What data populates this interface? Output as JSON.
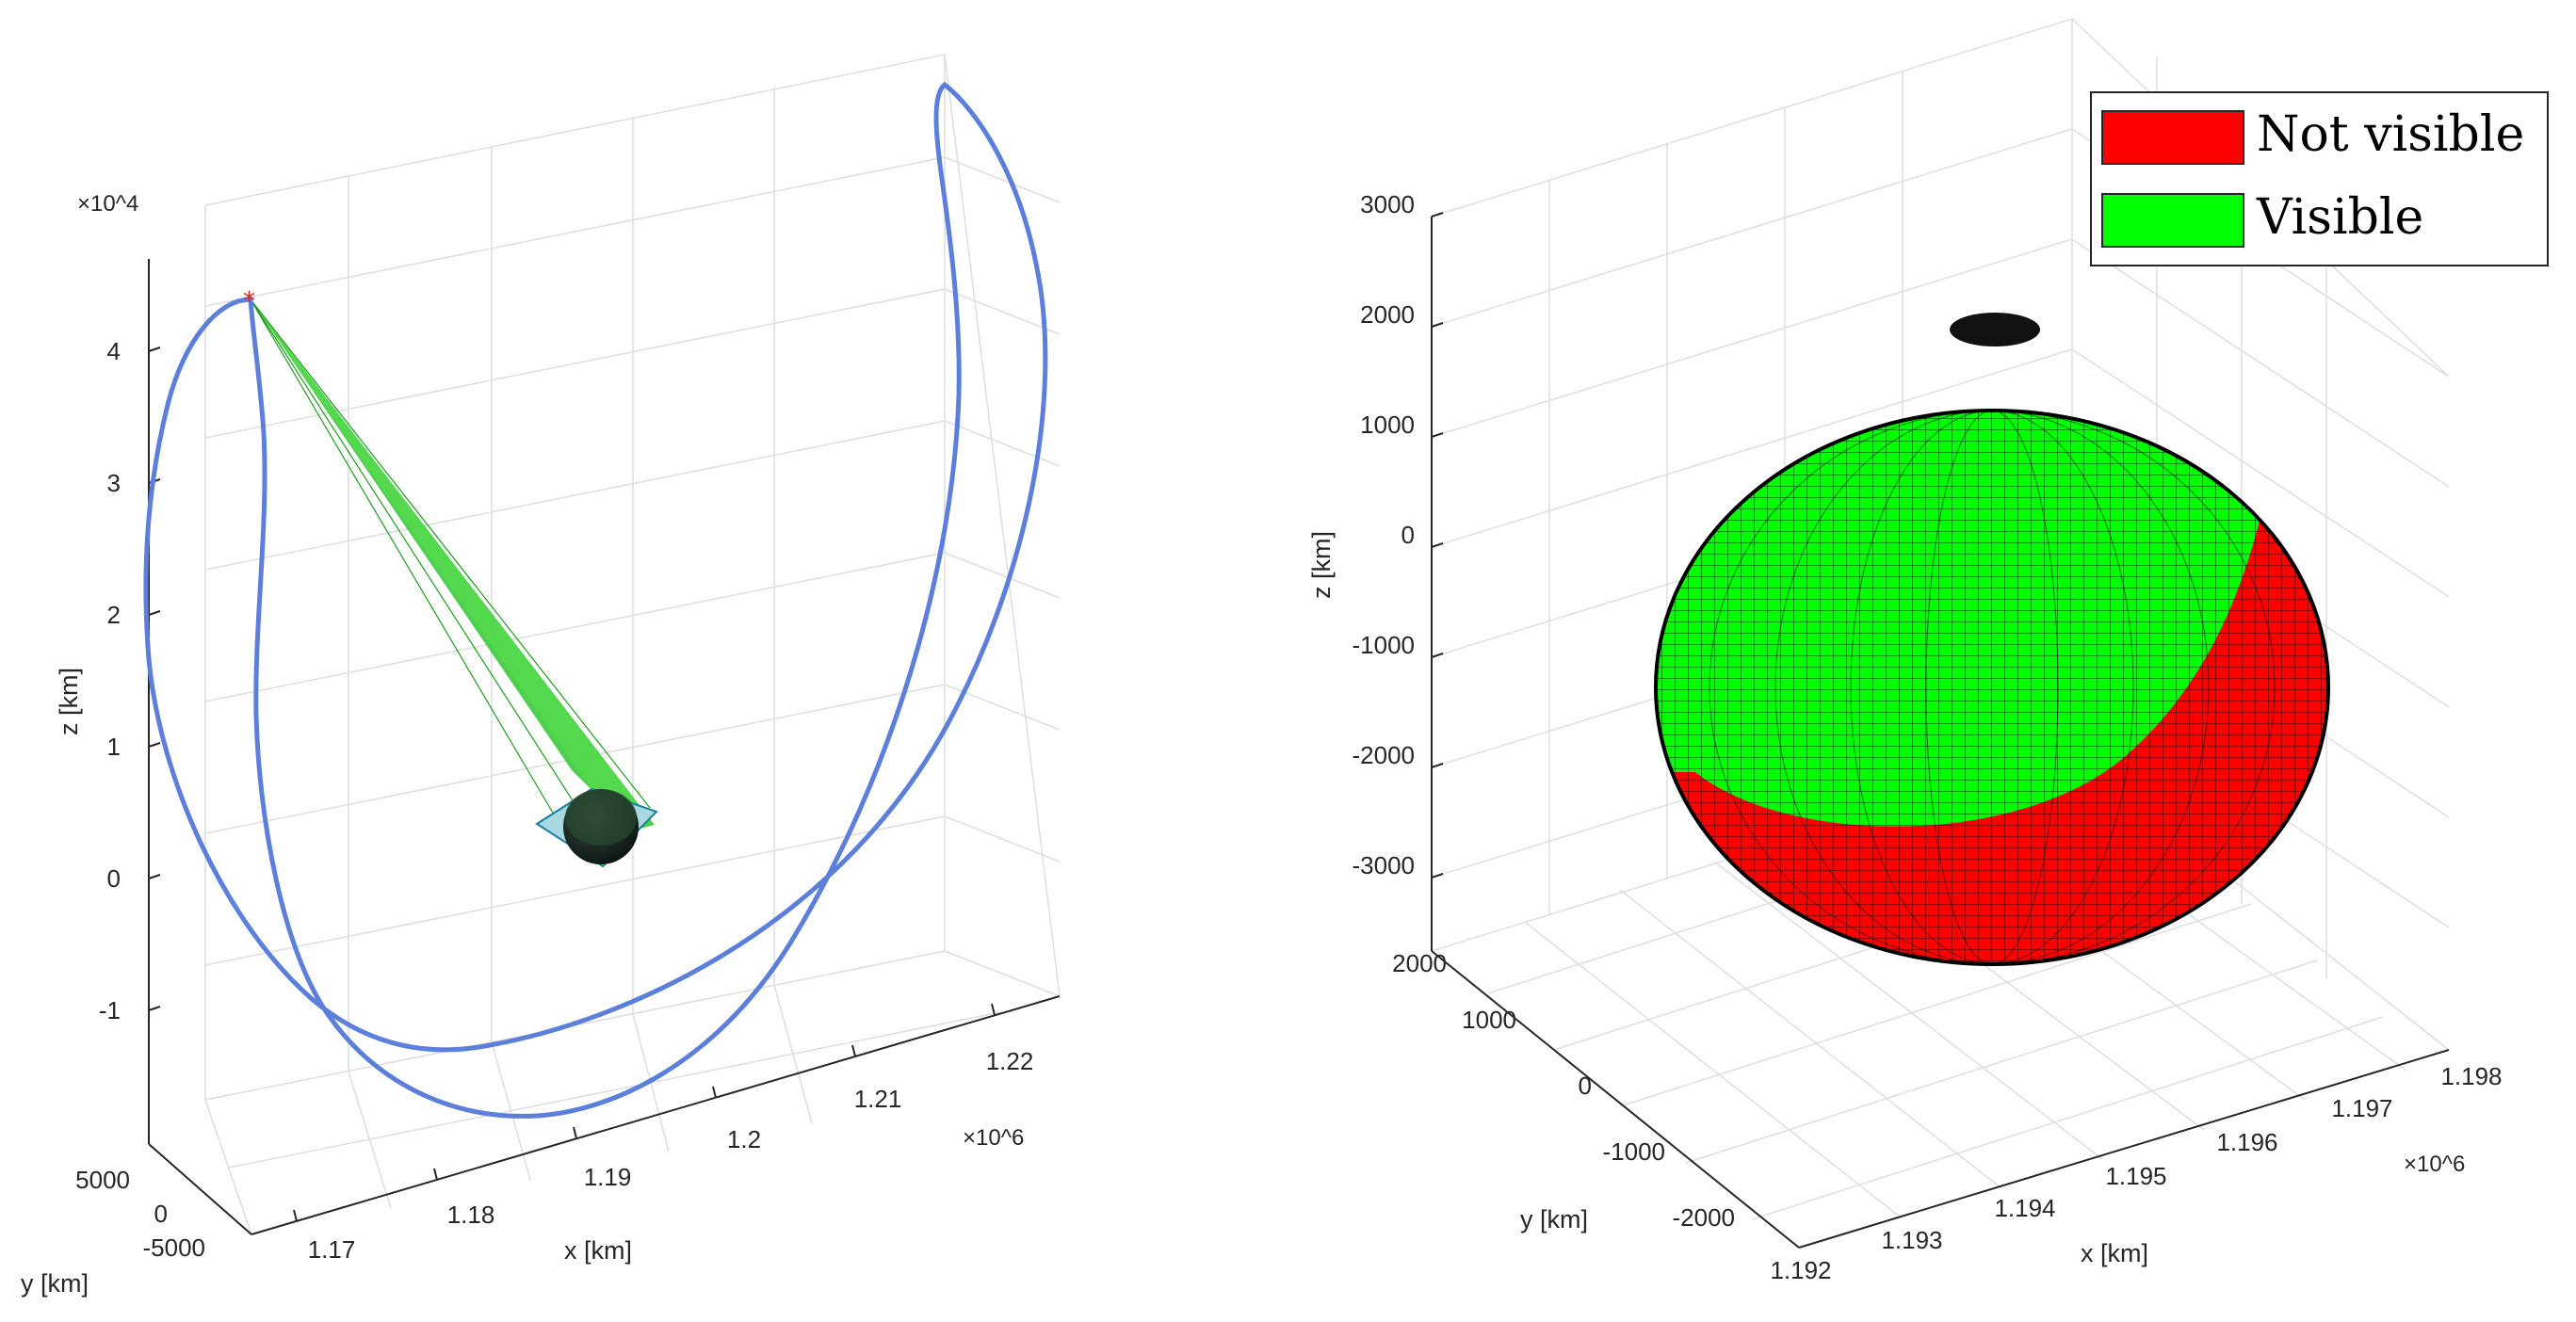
{
  "chart_data": [
    {
      "type": "line3d",
      "title": "",
      "xlabel": "x [km]",
      "ylabel": "y [km]",
      "zlabel": "z [km]",
      "x_multiplier": "×10^6",
      "z_multiplier": "×10^4",
      "x_ticks": [
        "1.17",
        "1.18",
        "1.19",
        "1.2",
        "1.21",
        "1.22"
      ],
      "y_ticks": [
        "5000",
        "0",
        "-5000"
      ],
      "z_ticks": [
        "4",
        "3",
        "2",
        "1",
        "0",
        "-1"
      ],
      "xlim": [
        1.165,
        1.225
      ],
      "zlim": [
        -2.0,
        4.5
      ],
      "series": [
        {
          "style": "orbit",
          "color": "#5b7fdb"
        },
        {
          "style": "visibility-cone",
          "color": "#2fc72f"
        },
        {
          "style": "satellite-marker",
          "color": "#e41a1c"
        }
      ],
      "grid": true
    },
    {
      "type": "surface3d",
      "title": "",
      "xlabel": "x [km]",
      "ylabel": "y [km]",
      "zlabel": "z [km]",
      "x_multiplier": "×10^6",
      "x_ticks": [
        "1.192",
        "1.193",
        "1.194",
        "1.195",
        "1.196",
        "1.197",
        "1.198"
      ],
      "y_ticks": [
        "2000",
        "1000",
        "0",
        "-1000",
        "-2000"
      ],
      "z_ticks": [
        "3000",
        "2000",
        "1000",
        "0",
        "-1000",
        "-2000",
        "-3000"
      ],
      "legend": {
        "placement": "top-right",
        "entries": [
          {
            "label": "Not visible",
            "color": "#ff0000"
          },
          {
            "label": "Visible",
            "color": "#00ff00"
          }
        ]
      },
      "grid": true
    }
  ]
}
